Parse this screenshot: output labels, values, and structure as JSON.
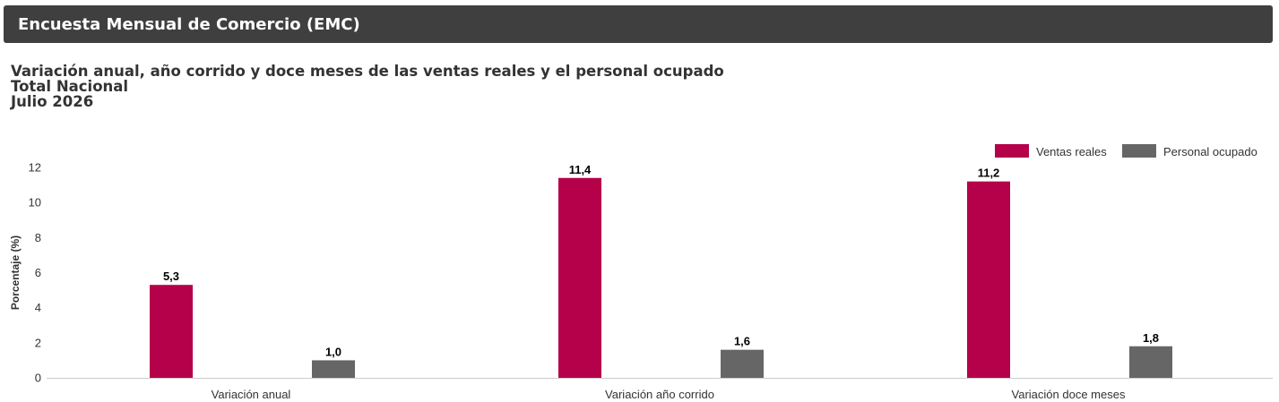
{
  "header": {
    "title": "Encuesta Mensual de Comercio (EMC)"
  },
  "chart_data": {
    "type": "bar",
    "title": "Variación anual, año corrido y doce meses de las ventas reales y el personal ocupado",
    "subtitle_lines": [
      "Total Nacional",
      "Julio 2026"
    ],
    "xlabel": "",
    "ylabel": "Porcentaje (%)",
    "ylim": [
      0,
      12
    ],
    "yticks": [
      0,
      2,
      4,
      6,
      8,
      10,
      12
    ],
    "categories": [
      "Variación anual",
      "Variación año corrido",
      "Variación doce meses"
    ],
    "series": [
      {
        "name": "Ventas reales",
        "color": "#b5004a",
        "values": [
          5.3,
          11.4,
          11.2
        ],
        "labels": [
          "5,3",
          "11,4",
          "11,2"
        ]
      },
      {
        "name": "Personal ocupado",
        "color": "#666666",
        "values": [
          1.0,
          1.6,
          1.8
        ],
        "labels": [
          "1,0",
          "1,6",
          "1,8"
        ]
      }
    ],
    "grid": false,
    "legend_position": "top-right"
  }
}
